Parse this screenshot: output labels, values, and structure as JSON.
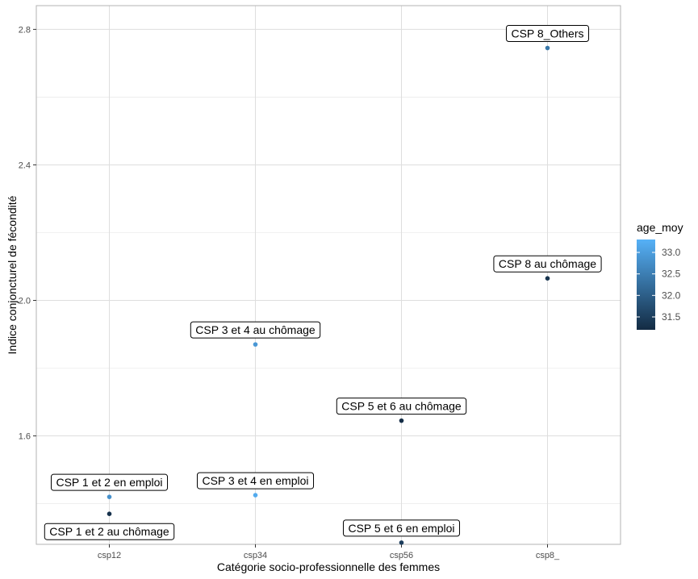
{
  "chart_data": {
    "type": "scatter",
    "xlabel": "Catégorie socio-professionnelle des femmes",
    "ylabel": "Indice conjoncturel de fécondité",
    "categories": [
      "csp12",
      "csp34",
      "csp56",
      "csp8_"
    ],
    "ylim": [
      1.28,
      2.87
    ],
    "yticks": [
      1.6,
      2.0,
      2.4,
      2.8
    ],
    "ytick_labels": [
      "1.6",
      "2.0",
      "2.4",
      "2.8"
    ],
    "grid": true,
    "legend": {
      "title": "age_moy",
      "position": "right",
      "type": "colorbar",
      "range": [
        31.2,
        33.3
      ],
      "ticks": [
        31.5,
        32.0,
        32.5,
        33.0
      ],
      "tick_labels": [
        "31.5",
        "32.0",
        "32.5",
        "33.0"
      ],
      "color_low": "#132B43",
      "color_high": "#56B1F7"
    },
    "points": [
      {
        "x": "csp12",
        "y": 1.42,
        "age_moy": 32.8,
        "label": "CSP 1 et 2 en emploi",
        "label_pos": "above"
      },
      {
        "x": "csp12",
        "y": 1.37,
        "age_moy": 31.3,
        "label": "CSP 1 et 2 au chômage",
        "label_pos": "below"
      },
      {
        "x": "csp34",
        "y": 1.87,
        "age_moy": 32.9,
        "label": "CSP 3 et 4 au chômage",
        "label_pos": "above"
      },
      {
        "x": "csp34",
        "y": 1.425,
        "age_moy": 33.2,
        "label": "CSP 3 et 4 en emploi",
        "label_pos": "above"
      },
      {
        "x": "csp56",
        "y": 1.645,
        "age_moy": 31.25,
        "label": "CSP 5 et 6 au chômage",
        "label_pos": "above"
      },
      {
        "x": "csp56",
        "y": 1.285,
        "age_moy": 31.5,
        "label": "CSP 5 et 6 en emploi",
        "label_pos": "above"
      },
      {
        "x": "csp8_",
        "y": 2.745,
        "age_moy": 32.4,
        "label": "CSP 8_Others",
        "label_pos": "above"
      },
      {
        "x": "csp8_",
        "y": 2.065,
        "age_moy": 31.35,
        "label": "CSP 8 au chômage",
        "label_pos": "above"
      }
    ]
  }
}
